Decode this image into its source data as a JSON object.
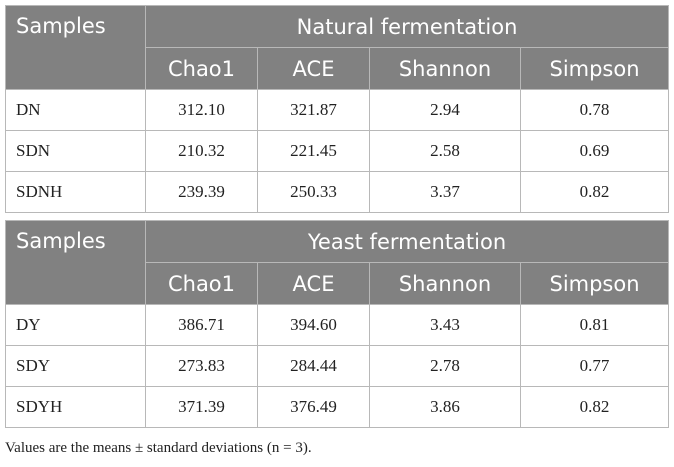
{
  "tables": [
    {
      "samples_header": "Samples",
      "group_header": "Natural fermentation",
      "columns": [
        "Chao1",
        "ACE",
        "Shannon",
        "Simpson"
      ],
      "rows": [
        {
          "sample": "DN",
          "values": [
            "312.10",
            "321.87",
            "2.94",
            "0.78"
          ]
        },
        {
          "sample": "SDN",
          "values": [
            "210.32",
            "221.45",
            "2.58",
            "0.69"
          ]
        },
        {
          "sample": "SDNH",
          "values": [
            "239.39",
            "250.33",
            "3.37",
            "0.82"
          ]
        }
      ]
    },
    {
      "samples_header": "Samples",
      "group_header": "Yeast fermentation",
      "columns": [
        "Chao1",
        "ACE",
        "Shannon",
        "Simpson"
      ],
      "rows": [
        {
          "sample": "DY",
          "values": [
            "386.71",
            "394.60",
            "3.43",
            "0.81"
          ]
        },
        {
          "sample": "SDY",
          "values": [
            "273.83",
            "284.44",
            "2.78",
            "0.77"
          ]
        },
        {
          "sample": "SDYH",
          "values": [
            "371.39",
            "376.49",
            "3.86",
            "0.82"
          ]
        }
      ]
    }
  ],
  "footnote": "Values are the means ± standard deviations (n = 3).",
  "colors": {
    "header_bg": "#818181",
    "header_text": "#ffffff",
    "border": "#b8b8b8"
  }
}
